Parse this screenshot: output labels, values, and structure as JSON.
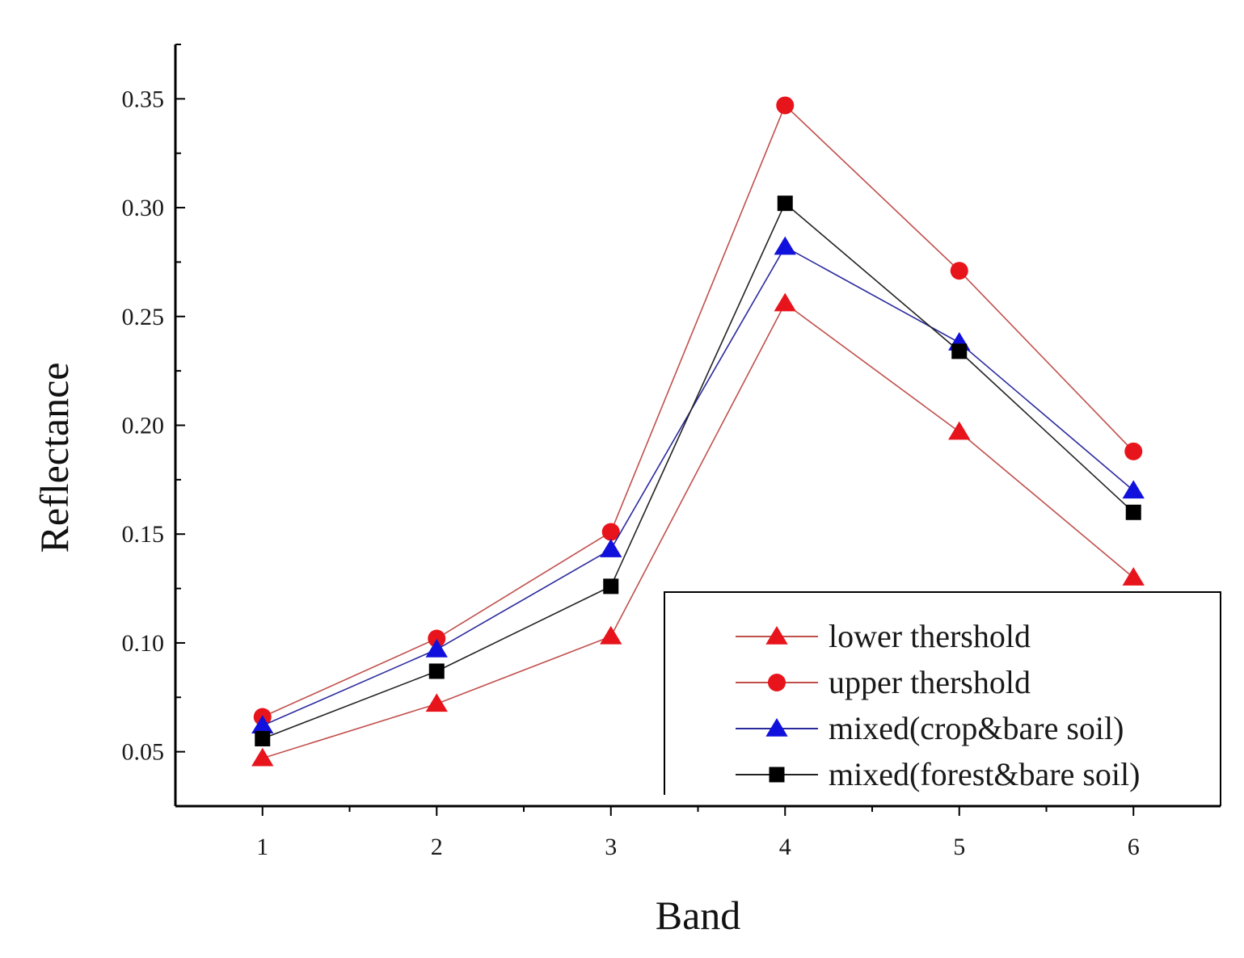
{
  "chart_data": {
    "type": "line",
    "title": "",
    "xlabel": "Band",
    "ylabel": "Reflectance",
    "x": [
      1,
      2,
      3,
      4,
      5,
      6
    ],
    "xticks": [
      "1",
      "2",
      "3",
      "4",
      "5",
      "6"
    ],
    "xlim": [
      0.5,
      6.5
    ],
    "ylim": [
      0.025,
      0.375
    ],
    "yticks": [
      "0.05",
      "0.10",
      "0.15",
      "0.20",
      "0.25",
      "0.30",
      "0.35"
    ],
    "grid": false,
    "legend_position": "bottom-right",
    "series": [
      {
        "name": "lower thershold",
        "marker": "triangle",
        "color": "#e8141c",
        "line_color": "#c0504d",
        "values": [
          0.047,
          0.072,
          0.103,
          0.256,
          0.197,
          0.13
        ]
      },
      {
        "name": "upper thershold",
        "marker": "circle",
        "color": "#e8141c",
        "line_color": "#c0504d",
        "values": [
          0.066,
          0.102,
          0.151,
          0.347,
          0.271,
          0.188
        ]
      },
      {
        "name": "mixed(crop&bare soil)",
        "marker": "triangle",
        "color": "#1111dd",
        "line_color": "#2a2a9e",
        "values": [
          0.062,
          0.097,
          0.143,
          0.282,
          0.238,
          0.17
        ]
      },
      {
        "name": "mixed(forest&bare soil)",
        "marker": "square",
        "color": "#000000",
        "line_color": "#222222",
        "values": [
          0.056,
          0.087,
          0.126,
          0.302,
          0.234,
          0.16
        ]
      }
    ]
  }
}
